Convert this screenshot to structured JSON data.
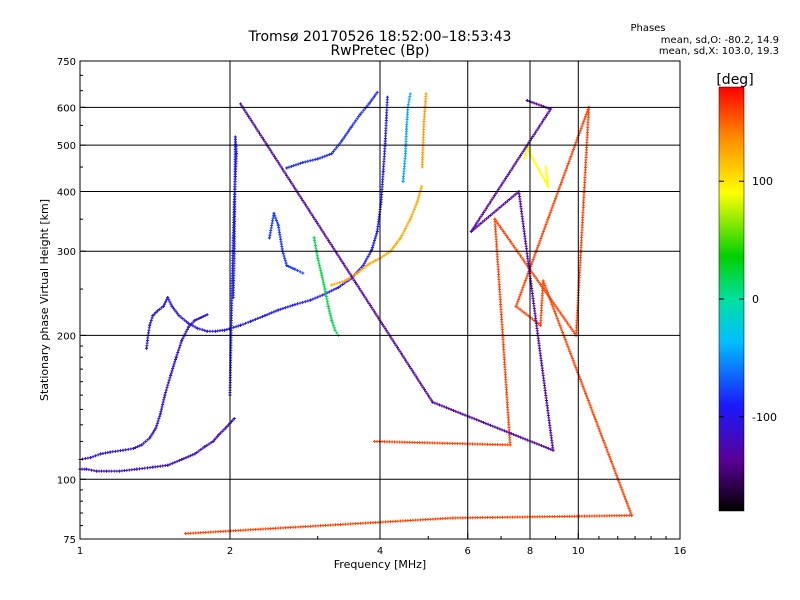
{
  "chart_data": {
    "type": "scatter",
    "title": "Tromsø 20170526 18:52:00–18:53:43",
    "subtitle": "RwPretec (Bp)",
    "xlabel": "Frequency [MHz]",
    "ylabel": "Stationary phase Virtual Height [km]",
    "x_scale": "log",
    "y_scale": "log",
    "xlim": [
      1,
      16
    ],
    "ylim": [
      75,
      750
    ],
    "x_ticks": [
      1,
      2,
      4,
      6,
      8,
      10,
      16
    ],
    "y_ticks": [
      75,
      100,
      200,
      300,
      400,
      500,
      600,
      750
    ],
    "x_gridlines": [
      2,
      4,
      6,
      8,
      10
    ],
    "y_gridlines": [
      100,
      200,
      300,
      400,
      500,
      600
    ],
    "stats_header": "Phases",
    "stats": [
      "mean, sd,O: -80.2, 14.9",
      "mean, sd,X: 103.0, 19.3"
    ],
    "colorbar": {
      "label": "[deg]",
      "range": [
        -180,
        180
      ],
      "ticks": [
        100,
        0,
        -100
      ]
    },
    "series": [
      {
        "name": "",
        "phase": -115,
        "points": [
          [
            1.0,
            105
          ],
          [
            1.03,
            105
          ],
          [
            1.08,
            104
          ],
          [
            1.13,
            104
          ],
          [
            1.2,
            104
          ],
          [
            1.3,
            105
          ],
          [
            1.4,
            106
          ],
          [
            1.5,
            107
          ],
          [
            1.6,
            110
          ],
          [
            1.7,
            113
          ],
          [
            1.78,
            117
          ],
          [
            1.85,
            120
          ],
          [
            1.9,
            124
          ],
          [
            1.96,
            128
          ],
          [
            2.0,
            131
          ],
          [
            2.04,
            134
          ]
        ]
      },
      {
        "name": "",
        "phase": -110,
        "points": [
          [
            1.0,
            110
          ],
          [
            1.05,
            111
          ],
          [
            1.1,
            113
          ],
          [
            1.15,
            114
          ],
          [
            1.22,
            115
          ],
          [
            1.28,
            116
          ],
          [
            1.33,
            118
          ],
          [
            1.38,
            122
          ],
          [
            1.42,
            128
          ],
          [
            1.45,
            137
          ],
          [
            1.48,
            150
          ],
          [
            1.52,
            165
          ],
          [
            1.56,
            180
          ],
          [
            1.6,
            195
          ],
          [
            1.65,
            208
          ],
          [
            1.7,
            215
          ],
          [
            1.75,
            218
          ],
          [
            1.8,
            221
          ]
        ]
      },
      {
        "name": "",
        "phase": -105,
        "points": [
          [
            1.36,
            188
          ],
          [
            1.37,
            200
          ],
          [
            1.38,
            210
          ],
          [
            1.4,
            220
          ],
          [
            1.43,
            225
          ],
          [
            1.47,
            230
          ],
          [
            1.5,
            240
          ],
          [
            1.53,
            230
          ],
          [
            1.58,
            220
          ],
          [
            1.65,
            212
          ],
          [
            1.72,
            207
          ],
          [
            1.8,
            204
          ],
          [
            1.87,
            204
          ],
          [
            1.93,
            205
          ]
        ]
      },
      {
        "name": "",
        "phase": -95,
        "points": [
          [
            1.95,
            205
          ],
          [
            2.1,
            210
          ],
          [
            2.2,
            214
          ],
          [
            2.35,
            220
          ],
          [
            2.5,
            226
          ],
          [
            2.7,
            232
          ],
          [
            2.9,
            237
          ],
          [
            3.1,
            244
          ],
          [
            3.3,
            252
          ],
          [
            3.5,
            263
          ],
          [
            3.7,
            280
          ],
          [
            3.85,
            302
          ],
          [
            3.95,
            330
          ],
          [
            4.02,
            380
          ],
          [
            4.06,
            440
          ],
          [
            4.1,
            510
          ],
          [
            4.12,
            570
          ],
          [
            4.14,
            630
          ]
        ]
      },
      {
        "name": "",
        "phase": -85,
        "points": [
          [
            2.6,
            448
          ],
          [
            2.8,
            460
          ],
          [
            3.0,
            468
          ],
          [
            3.2,
            480
          ],
          [
            3.35,
            510
          ],
          [
            3.5,
            545
          ],
          [
            3.65,
            580
          ],
          [
            3.8,
            610
          ],
          [
            3.95,
            645
          ]
        ]
      },
      {
        "name": "",
        "phase": -92,
        "points": [
          [
            2.0,
            150
          ],
          [
            2.01,
            200
          ],
          [
            2.02,
            260
          ],
          [
            2.03,
            320
          ],
          [
            2.04,
            380
          ],
          [
            2.05,
            430
          ],
          [
            2.06,
            480
          ],
          [
            2.05,
            520
          ],
          [
            2.04,
            300
          ],
          [
            2.03,
            240
          ]
        ]
      },
      {
        "name": "",
        "phase": -80,
        "points": [
          [
            2.4,
            320
          ],
          [
            2.45,
            360
          ],
          [
            2.5,
            340
          ],
          [
            2.55,
            300
          ],
          [
            2.6,
            280
          ],
          [
            2.7,
            275
          ],
          [
            2.8,
            270
          ]
        ]
      },
      {
        "name": "",
        "phase": 20,
        "points": [
          [
            2.95,
            320
          ],
          [
            3.0,
            290
          ],
          [
            3.05,
            270
          ],
          [
            3.1,
            250
          ],
          [
            3.15,
            230
          ],
          [
            3.2,
            215
          ],
          [
            3.25,
            205
          ],
          [
            3.3,
            200
          ]
        ]
      },
      {
        "name": "",
        "phase": 125,
        "points": [
          [
            3.2,
            255
          ],
          [
            3.4,
            260
          ],
          [
            3.6,
            270
          ],
          [
            3.8,
            282
          ],
          [
            4.0,
            290
          ],
          [
            4.2,
            300
          ],
          [
            4.4,
            320
          ],
          [
            4.6,
            350
          ],
          [
            4.75,
            380
          ],
          [
            4.85,
            410
          ]
        ]
      },
      {
        "name": "",
        "phase": -45,
        "points": [
          [
            4.45,
            420
          ],
          [
            4.5,
            480
          ],
          [
            4.52,
            540
          ],
          [
            4.55,
            600
          ],
          [
            4.6,
            640
          ]
        ]
      },
      {
        "name": "",
        "phase": 130,
        "points": [
          [
            4.95,
            640
          ],
          [
            4.9,
            560
          ],
          [
            4.88,
            500
          ],
          [
            4.86,
            450
          ]
        ]
      },
      {
        "name": "",
        "phase": 90,
        "points": [
          [
            7.8,
            470
          ],
          [
            7.9,
            500
          ],
          [
            8.0,
            480
          ],
          [
            8.7,
            410
          ],
          [
            8.6,
            450
          ]
        ]
      },
      {
        "name": "",
        "phase": 160,
        "points": [
          [
            1.63,
            77
          ],
          [
            5.6,
            83
          ],
          [
            12.8,
            84
          ],
          [
            8.5,
            260
          ],
          [
            8.4,
            210
          ],
          [
            7.5,
            230
          ],
          [
            10.5,
            600
          ],
          [
            9.9,
            200
          ],
          [
            6.8,
            350
          ],
          [
            7.3,
            118
          ],
          [
            3.9,
            120
          ]
        ]
      },
      {
        "name": "",
        "phase": -130,
        "points": [
          [
            7.9,
            620
          ],
          [
            8.8,
            595
          ],
          [
            6.1,
            330
          ],
          [
            7.6,
            400
          ],
          [
            8.9,
            115
          ],
          [
            5.1,
            145
          ],
          [
            2.1,
            610
          ]
        ]
      }
    ]
  }
}
